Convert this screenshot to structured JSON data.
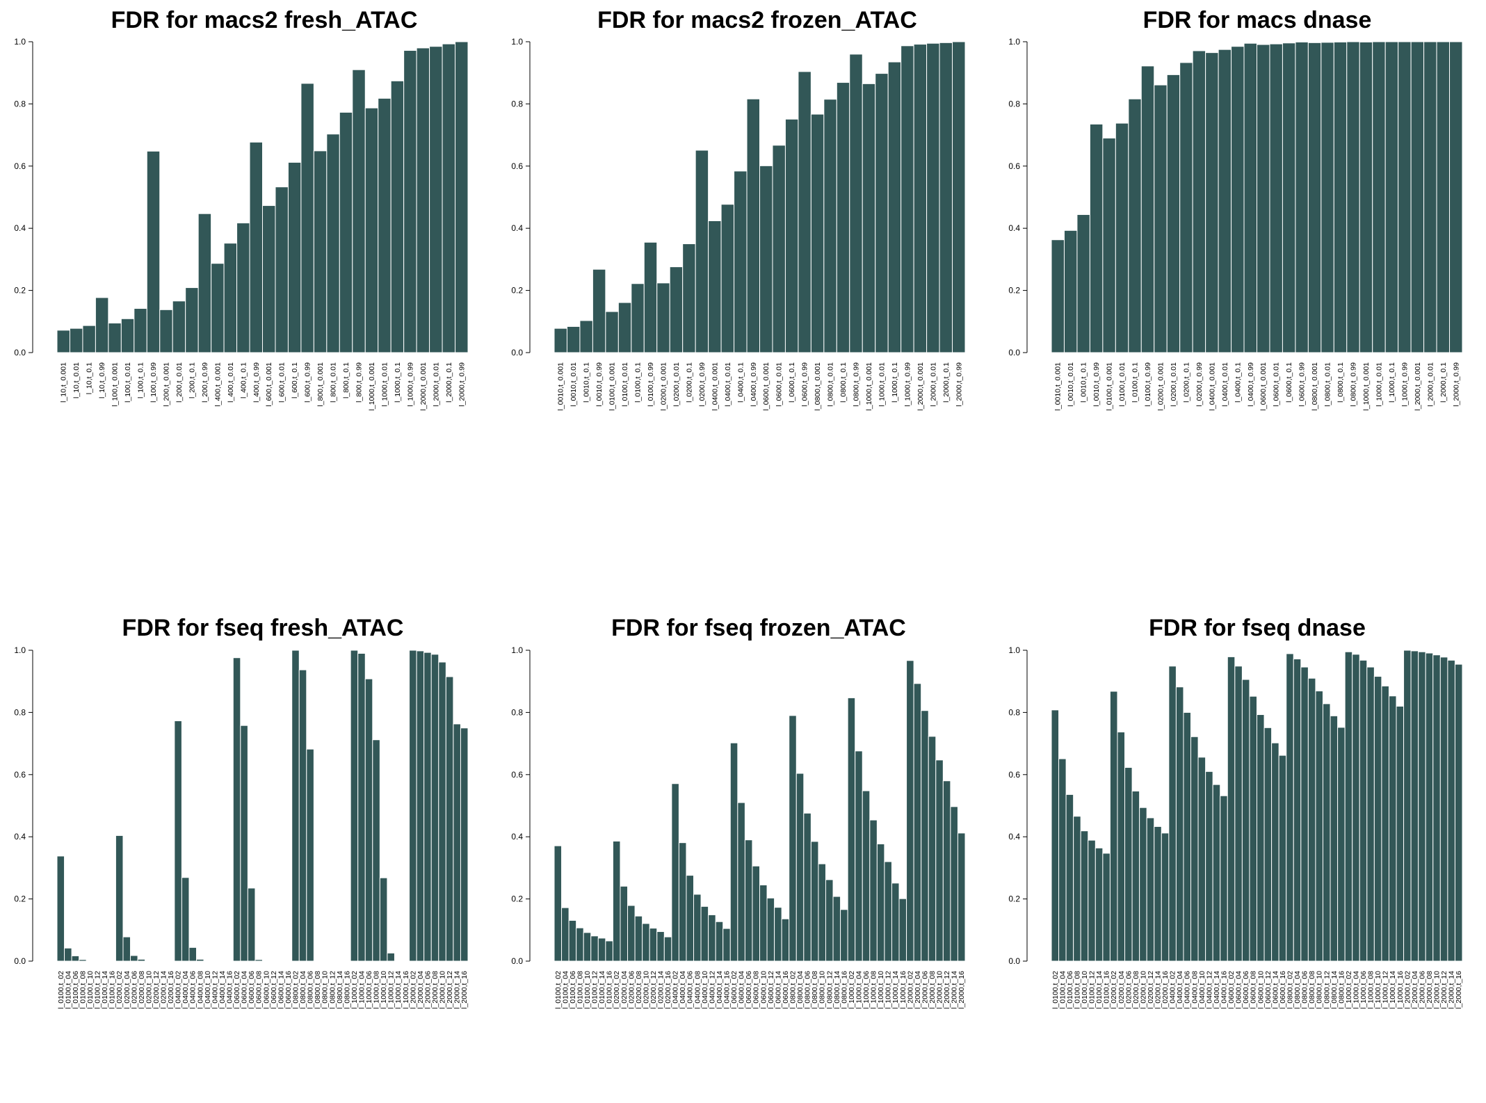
{
  "figure": {
    "bar_color": "#325757",
    "bar_stroke": "#ffffff"
  },
  "chart_data": [
    {
      "type": "bar",
      "title": "FDR for  macs2 fresh_ATAC",
      "ylim": [
        0,
        1
      ],
      "yticks": [
        "0.0",
        "0.2",
        "0.4",
        "0.6",
        "0.8",
        "1.0"
      ],
      "categories": [
        "l_10,t_0.001",
        "l_10,t_0.01",
        "l_10,t_0.1",
        "l_10,t_0.99",
        "l_100,t_0.001",
        "l_100,t_0.01",
        "l_100,t_0.1",
        "l_100,t_0.99",
        "l_200,t_0.001",
        "l_200,t_0.01",
        "l_200,t_0.1",
        "l_200,t_0.99",
        "l_400,t_0.001",
        "l_400,t_0.01",
        "l_400,t_0.1",
        "l_400,t_0.99",
        "l_600,t_0.001",
        "l_600,t_0.01",
        "l_600,t_0.1",
        "l_600,t_0.99",
        "l_800,t_0.001",
        "l_800,t_0.01",
        "l_800,t_0.1",
        "l_800,t_0.99",
        "l_1000,t_0.001",
        "l_1000,t_0.01",
        "l_1000,t_0.1",
        "l_1000,t_0.99",
        "l_2000,t_0.001",
        "l_2000,t_0.01",
        "l_2000,t_0.1",
        "l_2000,t_0.99"
      ],
      "values": [
        0.072,
        0.078,
        0.087,
        0.177,
        0.095,
        0.109,
        0.142,
        0.648,
        0.138,
        0.166,
        0.209,
        0.447,
        0.287,
        0.352,
        0.417,
        0.677,
        0.473,
        0.533,
        0.612,
        0.866,
        0.649,
        0.703,
        0.773,
        0.91,
        0.787,
        0.818,
        0.874,
        0.972,
        0.98,
        0.985,
        0.993,
        1.0
      ]
    },
    {
      "type": "bar",
      "title": "FDR for  macs2 frozen_ATAC",
      "ylim": [
        0,
        1
      ],
      "yticks": [
        "0.0",
        "0.2",
        "0.4",
        "0.6",
        "0.8",
        "1.0"
      ],
      "categories": [
        "l_0010,t_0.001",
        "l_0010,t_0.01",
        "l_0010,t_0.1",
        "l_0010,t_0.99",
        "l_0100,t_0.001",
        "l_0100,t_0.01",
        "l_0100,t_0.1",
        "l_0100,t_0.99",
        "l_0200,t_0.001",
        "l_0200,t_0.01",
        "l_0200,t_0.1",
        "l_0200,t_0.99",
        "l_0400,t_0.001",
        "l_0400,t_0.01",
        "l_0400,t_0.1",
        "l_0400,t_0.99",
        "l_0600,t_0.001",
        "l_0600,t_0.01",
        "l_0600,t_0.1",
        "l_0600,t_0.99",
        "l_0800,t_0.001",
        "l_0800,t_0.01",
        "l_0800,t_0.1",
        "l_0800,t_0.99",
        "l_1000,t_0.001",
        "l_1000,t_0.01",
        "l_1000,t_0.1",
        "l_1000,t_0.99",
        "l_2000,t_0.001",
        "l_2000,t_0.01",
        "l_2000,t_0.1",
        "l_2000,t_0.99"
      ],
      "values": [
        0.078,
        0.084,
        0.103,
        0.268,
        0.132,
        0.161,
        0.222,
        0.355,
        0.224,
        0.276,
        0.35,
        0.651,
        0.424,
        0.477,
        0.584,
        0.816,
        0.601,
        0.667,
        0.751,
        0.904,
        0.767,
        0.815,
        0.869,
        0.96,
        0.865,
        0.898,
        0.935,
        0.987,
        0.992,
        0.995,
        0.997,
        1.0
      ]
    },
    {
      "type": "bar",
      "title": "FDR for  macs dnase",
      "ylim": [
        0,
        1
      ],
      "yticks": [
        "0.0",
        "0.2",
        "0.4",
        "0.6",
        "0.8",
        "1.0"
      ],
      "categories": [
        "l_0010,t_0.001",
        "l_0010,t_0.01",
        "l_0010,t_0.1",
        "l_0010,t_0.99",
        "l_0100,t_0.001",
        "l_0100,t_0.01",
        "l_0100,t_0.1",
        "l_0100,t_0.99",
        "l_0200,t_0.001",
        "l_0200,t_0.01",
        "l_0200,t_0.1",
        "l_0200,t_0.99",
        "l_0400,t_0.001",
        "l_0400,t_0.01",
        "l_0400,t_0.1",
        "l_0400,t_0.99",
        "l_0600,t_0.001",
        "l_0600,t_0.01",
        "l_0600,t_0.1",
        "l_0600,t_0.99",
        "l_0800,t_0.001",
        "l_0800,t_0.01",
        "l_0800,t_0.1",
        "l_0800,t_0.99",
        "l_1000,t_0.001",
        "l_1000,t_0.01",
        "l_1000,t_0.1",
        "l_1000,t_0.99",
        "l_2000,t_0.001",
        "l_2000,t_0.01",
        "l_2000,t_0.1",
        "l_2000,t_0.99"
      ],
      "values": [
        0.363,
        0.393,
        0.444,
        0.735,
        0.69,
        0.738,
        0.816,
        0.922,
        0.861,
        0.894,
        0.933,
        0.971,
        0.965,
        0.975,
        0.985,
        0.995,
        0.991,
        0.993,
        0.996,
        0.999,
        0.997,
        0.998,
        0.999,
        1.0,
        0.999,
        1.0,
        1.0,
        1.0,
        1.0,
        1.0,
        1.0,
        1.0
      ]
    },
    {
      "type": "bar",
      "title": "FDR for  fseq fresh_ATAC",
      "ylim": [
        0,
        1
      ],
      "yticks": [
        "0.0",
        "0.2",
        "0.4",
        "0.6",
        "0.8",
        "1.0"
      ],
      "categories": [
        "l_0100,t_02",
        "l_0100,t_04",
        "l_0100,t_06",
        "l_0100,t_08",
        "l_0100,t_10",
        "l_0100,t_12",
        "l_0100,t_14",
        "l_0100,t_16",
        "l_0200,t_02",
        "l_0200,t_04",
        "l_0200,t_06",
        "l_0200,t_08",
        "l_0200,t_10",
        "l_0200,t_12",
        "l_0200,t_14",
        "l_0200,t_16",
        "l_0400,t_02",
        "l_0400,t_04",
        "l_0400,t_06",
        "l_0400,t_08",
        "l_0400,t_10",
        "l_0400,t_12",
        "l_0400,t_14",
        "l_0400,t_16",
        "l_0600,t_02",
        "l_0600,t_04",
        "l_0600,t_06",
        "l_0600,t_08",
        "l_0600,t_10",
        "l_0600,t_12",
        "l_0600,t_14",
        "l_0600,t_16",
        "l_0800,t_02",
        "l_0800,t_04",
        "l_0800,t_06",
        "l_0800,t_08",
        "l_0800,t_10",
        "l_0800,t_12",
        "l_0800,t_14",
        "l_0800,t_16",
        "l_1000,t_02",
        "l_1000,t_04",
        "l_1000,t_06",
        "l_1000,t_08",
        "l_1000,t_10",
        "l_1000,t_12",
        "l_1000,t_14",
        "l_1000,t_16",
        "l_2000,t_02",
        "l_2000,t_04",
        "l_2000,t_06",
        "l_2000,t_08",
        "l_2000,t_10",
        "l_2000,t_12",
        "l_2000,t_14",
        "l_2000,t_16"
      ],
      "values": [
        0.338,
        0.042,
        0.017,
        0.005,
        0.002,
        0.001,
        0.001,
        0.001,
        0.404,
        0.078,
        0.018,
        0.006,
        0.002,
        0.001,
        0.001,
        0.001,
        0.773,
        0.269,
        0.044,
        0.006,
        0.002,
        0.001,
        0.001,
        0.001,
        0.976,
        0.758,
        0.235,
        0.005,
        0.001,
        0.001,
        0.001,
        0.001,
        1.0,
        0.937,
        0.682,
        0.002,
        0.001,
        0.001,
        0.001,
        0.001,
        1.0,
        0.99,
        0.908,
        0.712,
        0.268,
        0.026,
        0.002,
        0.001,
        1.0,
        0.998,
        0.993,
        0.987,
        0.962,
        0.915,
        0.763,
        0.75
      ]
    },
    {
      "type": "bar",
      "title": "FDR for  fseq frozen_ATAC",
      "ylim": [
        0,
        1
      ],
      "yticks": [
        "0.0",
        "0.2",
        "0.4",
        "0.6",
        "0.8",
        "1.0"
      ],
      "categories": [
        "l_0100,t_02",
        "l_0100,t_04",
        "l_0100,t_06",
        "l_0100,t_08",
        "l_0100,t_10",
        "l_0100,t_12",
        "l_0100,t_14",
        "l_0100,t_16",
        "l_0200,t_02",
        "l_0200,t_04",
        "l_0200,t_06",
        "l_0200,t_08",
        "l_0200,t_10",
        "l_0200,t_12",
        "l_0200,t_14",
        "l_0200,t_16",
        "l_0400,t_02",
        "l_0400,t_04",
        "l_0400,t_06",
        "l_0400,t_08",
        "l_0400,t_10",
        "l_0400,t_12",
        "l_0400,t_14",
        "l_0400,t_16",
        "l_0600,t_02",
        "l_0600,t_04",
        "l_0600,t_06",
        "l_0600,t_08",
        "l_0600,t_10",
        "l_0600,t_12",
        "l_0600,t_14",
        "l_0600,t_16",
        "l_0800,t_02",
        "l_0800,t_04",
        "l_0800,t_06",
        "l_0800,t_08",
        "l_0800,t_10",
        "l_0800,t_12",
        "l_0800,t_14",
        "l_0800,t_16",
        "l_1000,t_02",
        "l_1000,t_04",
        "l_1000,t_06",
        "l_1000,t_08",
        "l_1000,t_10",
        "l_1000,t_12",
        "l_1000,t_14",
        "l_1000,t_16",
        "l_2000,t_02",
        "l_2000,t_04",
        "l_2000,t_06",
        "l_2000,t_08",
        "l_2000,t_10",
        "l_2000,t_12",
        "l_2000,t_14",
        "l_2000,t_16"
      ],
      "values": [
        0.371,
        0.172,
        0.131,
        0.107,
        0.092,
        0.081,
        0.074,
        0.065,
        0.386,
        0.241,
        0.179,
        0.145,
        0.121,
        0.106,
        0.095,
        0.078,
        0.571,
        0.381,
        0.276,
        0.215,
        0.176,
        0.149,
        0.127,
        0.105,
        0.702,
        0.51,
        0.39,
        0.306,
        0.245,
        0.203,
        0.173,
        0.136,
        0.79,
        0.604,
        0.476,
        0.385,
        0.313,
        0.262,
        0.208,
        0.166,
        0.847,
        0.676,
        0.548,
        0.454,
        0.377,
        0.32,
        0.251,
        0.201,
        0.967,
        0.893,
        0.806,
        0.723,
        0.647,
        0.58,
        0.497,
        0.412
      ]
    },
    {
      "type": "bar",
      "title": "FDR for  fseq dnase",
      "ylim": [
        0,
        1
      ],
      "yticks": [
        "0.0",
        "0.2",
        "0.4",
        "0.6",
        "0.8",
        "1.0"
      ],
      "categories": [
        "l_0100,t_02",
        "l_0100,t_04",
        "l_0100,t_06",
        "l_0100,t_08",
        "l_0100,t_10",
        "l_0100,t_12",
        "l_0100,t_14",
        "l_0100,t_16",
        "l_0200,t_02",
        "l_0200,t_04",
        "l_0200,t_06",
        "l_0200,t_08",
        "l_0200,t_10",
        "l_0200,t_12",
        "l_0200,t_14",
        "l_0200,t_16",
        "l_0400,t_02",
        "l_0400,t_04",
        "l_0400,t_06",
        "l_0400,t_08",
        "l_0400,t_10",
        "l_0400,t_12",
        "l_0400,t_14",
        "l_0400,t_16",
        "l_0600,t_02",
        "l_0600,t_04",
        "l_0600,t_06",
        "l_0600,t_08",
        "l_0600,t_10",
        "l_0600,t_12",
        "l_0600,t_14",
        "l_0600,t_16",
        "l_0800,t_02",
        "l_0800,t_04",
        "l_0800,t_06",
        "l_0800,t_08",
        "l_0800,t_10",
        "l_0800,t_12",
        "l_0800,t_14",
        "l_0800,t_16",
        "l_1000,t_02",
        "l_1000,t_04",
        "l_1000,t_06",
        "l_1000,t_08",
        "l_1000,t_10",
        "l_1000,t_12",
        "l_1000,t_14",
        "l_1000,t_16",
        "l_2000,t_02",
        "l_2000,t_04",
        "l_2000,t_06",
        "l_2000,t_08",
        "l_2000,t_10",
        "l_2000,t_12",
        "l_2000,t_14",
        "l_2000,t_16"
      ],
      "values": [
        0.808,
        0.651,
        0.536,
        0.466,
        0.419,
        0.389,
        0.364,
        0.347,
        0.868,
        0.737,
        0.623,
        0.547,
        0.494,
        0.461,
        0.433,
        0.412,
        0.949,
        0.882,
        0.8,
        0.722,
        0.656,
        0.61,
        0.568,
        0.532,
        0.979,
        0.949,
        0.906,
        0.852,
        0.793,
        0.751,
        0.702,
        0.662,
        0.989,
        0.972,
        0.946,
        0.91,
        0.869,
        0.828,
        0.789,
        0.752,
        0.995,
        0.987,
        0.968,
        0.946,
        0.916,
        0.885,
        0.853,
        0.82,
        1.0,
        0.998,
        0.995,
        0.991,
        0.985,
        0.978,
        0.968,
        0.955
      ]
    }
  ]
}
